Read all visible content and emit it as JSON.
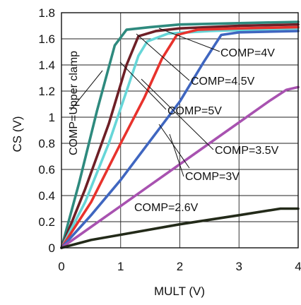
{
  "chart_data": {
    "type": "line",
    "xlabel": "MULT (V)",
    "ylabel": "CS (V)",
    "xlim": [
      0,
      4
    ],
    "ylim": [
      0,
      1.8
    ],
    "x_ticks": [
      0,
      1,
      2,
      3,
      4
    ],
    "x_tick_labels": [
      "0",
      "1",
      "2",
      "3",
      "4"
    ],
    "y_ticks": [
      0,
      0.2,
      0.4,
      0.6,
      0.8,
      1.0,
      1.2,
      1.4,
      1.6,
      1.8
    ],
    "y_tick_labels": [
      "0",
      "0.2",
      "0.4",
      "0.6",
      "0.8",
      "1",
      "1.2",
      "1.4",
      "1.6",
      "1.8"
    ],
    "grid": true,
    "series": [
      {
        "name": "COMP=Upper clamp",
        "color": "#2e8a7e",
        "x": [
          0,
          0.3,
          0.6,
          0.9,
          1.1,
          1.5,
          2.0,
          3.0,
          4.0
        ],
        "y": [
          0,
          0.5,
          1.05,
          1.55,
          1.67,
          1.69,
          1.71,
          1.72,
          1.73
        ]
      },
      {
        "name": "COMP=4.5V",
        "color": "#6e1f26",
        "x": [
          0,
          0.4,
          0.8,
          1.1,
          1.3,
          1.6,
          2.0,
          3.0,
          4.0
        ],
        "y": [
          0,
          0.45,
          0.95,
          1.4,
          1.62,
          1.66,
          1.68,
          1.7,
          1.71
        ]
      },
      {
        "name": "COMP=5V",
        "color": "#66d6d8",
        "x": [
          0,
          0.4,
          0.8,
          1.1,
          1.3,
          1.45,
          1.8,
          2.5,
          4.0
        ],
        "y": [
          0,
          0.35,
          0.8,
          1.2,
          1.47,
          1.58,
          1.64,
          1.66,
          1.68
        ]
      },
      {
        "name": "COMP=4V",
        "color": "#e8322c",
        "x": [
          0,
          0.5,
          1.0,
          1.4,
          1.7,
          1.95,
          2.3,
          3.0,
          4.0
        ],
        "y": [
          0,
          0.35,
          0.8,
          1.15,
          1.45,
          1.63,
          1.67,
          1.68,
          1.69
        ]
      },
      {
        "name": "COMP=3.5V",
        "color": "#3f66c0",
        "x": [
          0,
          0.5,
          1.0,
          1.5,
          2.0,
          2.4,
          2.7,
          3.0,
          4.0
        ],
        "y": [
          0,
          0.25,
          0.52,
          0.82,
          1.12,
          1.42,
          1.63,
          1.65,
          1.66
        ]
      },
      {
        "name": "COMP=3V",
        "color": "#a852b0",
        "x": [
          0,
          0.5,
          1.0,
          1.5,
          2.0,
          2.5,
          3.0,
          3.5,
          3.8,
          4.0
        ],
        "y": [
          0,
          0.16,
          0.32,
          0.48,
          0.64,
          0.8,
          0.96,
          1.12,
          1.21,
          1.23
        ]
      },
      {
        "name": "COMP=2.6V",
        "color": "#232a19",
        "x": [
          0,
          0.5,
          1.0,
          2.0,
          3.0,
          3.7,
          4.0
        ],
        "y": [
          0,
          0.06,
          0.1,
          0.18,
          0.25,
          0.3,
          0.3
        ]
      }
    ],
    "annotations": [
      {
        "text": "COMP=Upper clamp"
      },
      {
        "text": "COMP=4V"
      },
      {
        "text": "COMP=4.5V"
      },
      {
        "text": "COMP=5V"
      },
      {
        "text": "COMP=3.5V"
      },
      {
        "text": "COMP=3V"
      },
      {
        "text": "COMP=2.6V"
      }
    ]
  }
}
